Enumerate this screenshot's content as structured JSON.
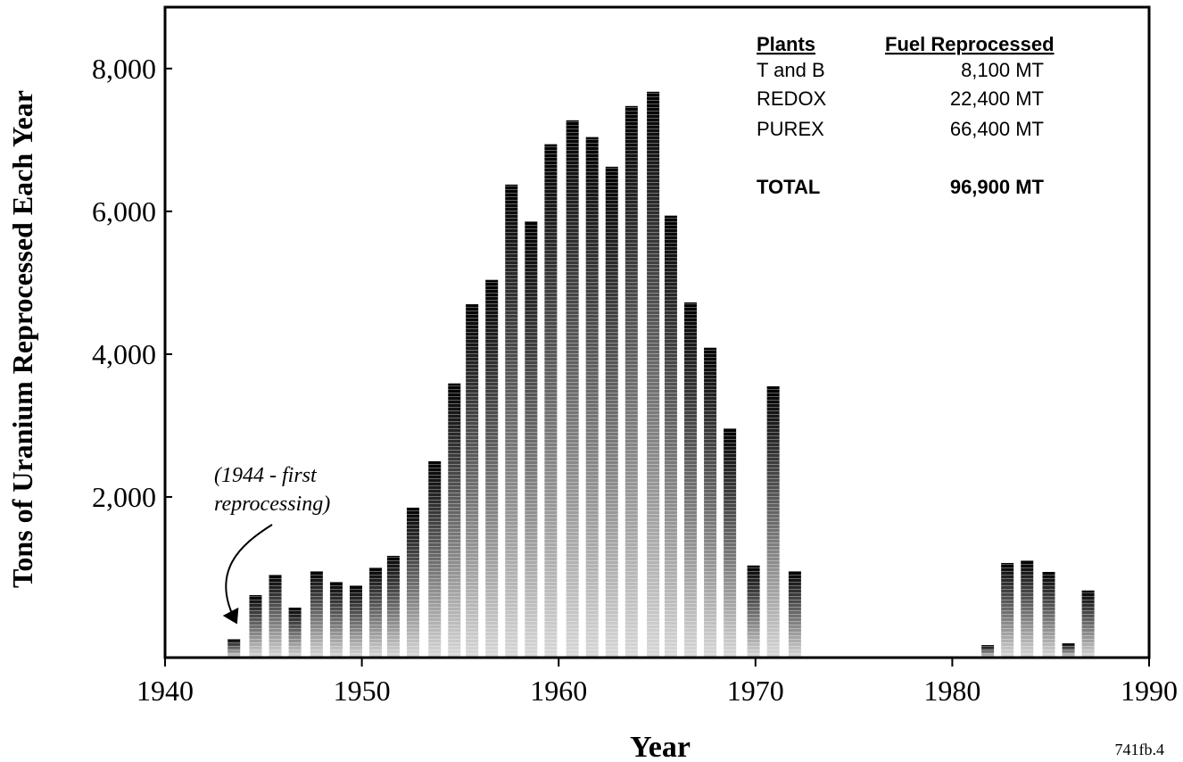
{
  "chart_data": {
    "type": "bar",
    "xlabel": "Year",
    "ylabel": "Tons of Uranium Reprocessed Each Year",
    "x": [
      1943.5,
      1944.6,
      1945.6,
      1946.6,
      1947.7,
      1948.7,
      1949.7,
      1950.7,
      1951.6,
      1952.6,
      1953.7,
      1954.7,
      1955.6,
      1956.6,
      1957.6,
      1958.6,
      1959.6,
      1960.7,
      1961.7,
      1962.7,
      1963.7,
      1964.8,
      1965.7,
      1966.7,
      1967.7,
      1968.7,
      1969.9,
      1970.9,
      1972.0,
      1981.8,
      1982.8,
      1983.8,
      1984.9,
      1985.9,
      1986.9
    ],
    "values": [
      10,
      625,
      910,
      450,
      960,
      810,
      760,
      1010,
      1175,
      1850,
      2500,
      3590,
      4700,
      5040,
      6375,
      5860,
      6940,
      7275,
      7040,
      6625,
      7475,
      7675,
      5940,
      4725,
      4090,
      2960,
      1040,
      3550,
      960,
      -75,
      1075,
      1110,
      950,
      -50,
      690
    ],
    "xlim": [
      1940,
      1990
    ],
    "xticks": [
      1940,
      1950,
      1960,
      1970,
      1980,
      1990
    ],
    "ylim": [
      -250,
      8860
    ],
    "yticks": [
      {
        "value": 2000,
        "label": "2,000"
      },
      {
        "value": 4000,
        "label": "4,000"
      },
      {
        "value": 6000,
        "label": "6,000"
      },
      {
        "value": 8000,
        "label": "8,000"
      }
    ],
    "annotation": [
      "(1944 - first",
      "reprocessing)"
    ],
    "summary_table": {
      "headers": [
        "Plants",
        "Fuel Reprocessed"
      ],
      "rows": [
        [
          "T and B",
          "8,100 MT"
        ],
        [
          "REDOX",
          "22,400 MT"
        ],
        [
          "PUREX",
          "66,400 MT"
        ]
      ],
      "total": [
        "TOTAL",
        "96,900 MT"
      ]
    },
    "figure_id": "741fb.4"
  }
}
